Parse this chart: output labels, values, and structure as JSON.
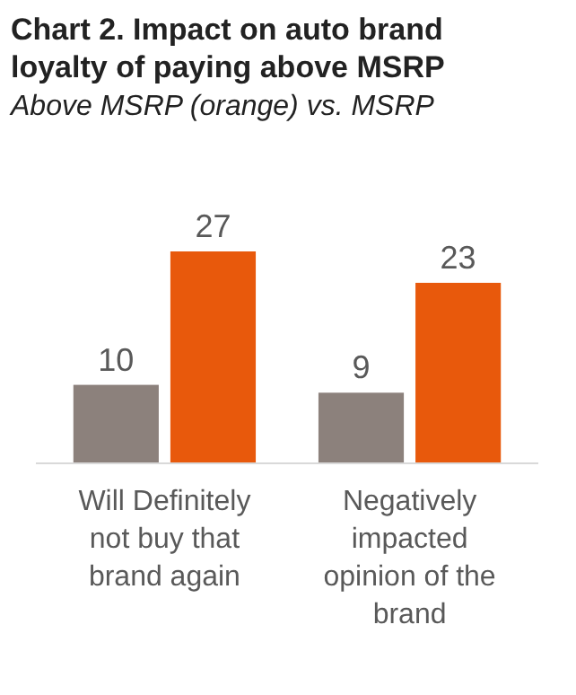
{
  "chart_data": {
    "type": "bar",
    "title": "Chart 2. Impact on auto brand loyalty of paying above MSRP",
    "subtitle": "Above MSRP (orange) vs. MSRP",
    "categories": [
      "Will Definitely not buy that brand again",
      "Negatively impacted opinion of the brand"
    ],
    "series": [
      {
        "color": "#8c817c",
        "values": [
          10,
          9
        ]
      },
      {
        "color": "#e8590c",
        "values": [
          27,
          23
        ]
      }
    ],
    "data_labels": true,
    "grid": false
  }
}
